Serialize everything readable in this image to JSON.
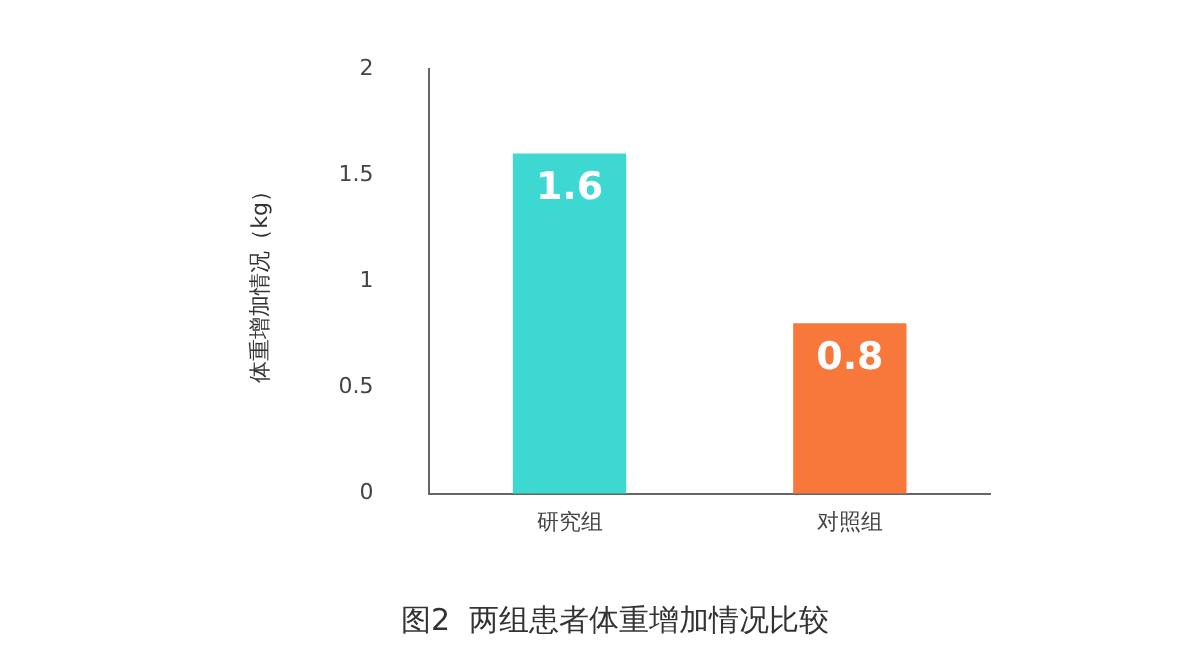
{
  "chart_data": {
    "type": "bar",
    "title": "图2  两组患者体重增加情况比较",
    "ylabel": "体重增加情况（kg）",
    "categories": [
      "研究组",
      "对照组"
    ],
    "values": [
      1.6,
      0.8
    ],
    "colors": [
      "#3dd8d2",
      "#f7783a"
    ],
    "ylim": [
      0,
      2
    ],
    "yticks": [
      0,
      0.5,
      1,
      1.5,
      2
    ],
    "grid": false,
    "legend": false,
    "data_labels": true
  }
}
